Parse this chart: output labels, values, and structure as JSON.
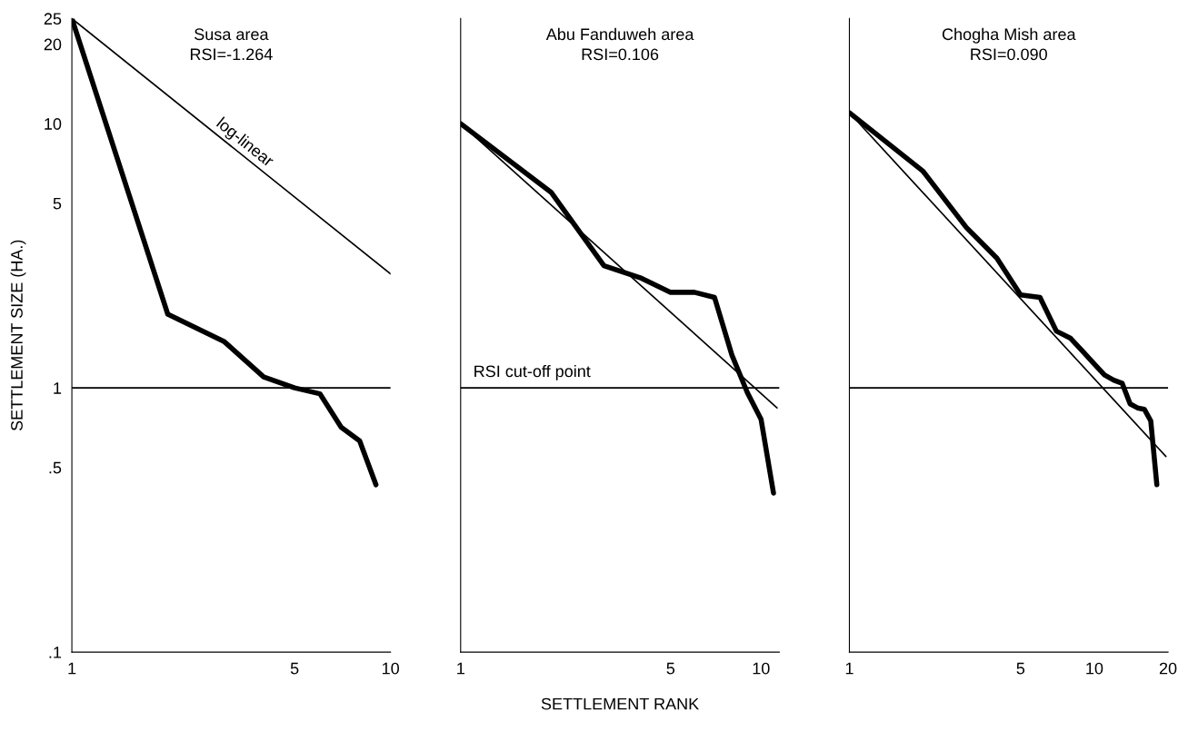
{
  "chart_data": [
    {
      "type": "line",
      "title": "Susa area",
      "subtitle": "RSI=-1.264",
      "ylabel": "SETTLEMENT SIZE (HA.)",
      "log": "xy",
      "grid": false,
      "legend": false,
      "marker": "none",
      "line_style": "solid",
      "xlim": [
        1,
        10
      ],
      "xticks": [
        1,
        5,
        10
      ],
      "ylim": [
        0.1,
        25
      ],
      "yticks": [
        {
          "value": 0.1,
          "label": ".1"
        },
        {
          "value": 0.5,
          "label": ".5"
        },
        1,
        5,
        10,
        20,
        25
      ],
      "series": [
        {
          "color": "#000000",
          "x": [
            1,
            2,
            3,
            4,
            5,
            6,
            7,
            8,
            9
          ],
          "values": [
            25,
            1.9,
            1.5,
            1.1,
            1.0,
            0.95,
            0.71,
            0.63,
            0.43
          ]
        },
        {
          "name": "log-linear",
          "color": "#000000",
          "x": [
            1,
            10
          ],
          "values": [
            25,
            2.7
          ]
        }
      ],
      "ref_lines": [
        {
          "axis": "y",
          "value": 1,
          "label": null,
          "color": "#000000"
        }
      ]
    },
    {
      "type": "line",
      "title": "Abu Fanduweh area",
      "subtitle": "RSI=0.106",
      "xlabel": "SETTLEMENT RANK",
      "log": "xy",
      "grid": false,
      "legend": false,
      "marker": "none",
      "line_style": "solid",
      "tick_labels": "x",
      "xlim": [
        1,
        11.5
      ],
      "xticks": [
        1,
        5,
        10
      ],
      "ylim": [
        0.1,
        25
      ],
      "series": [
        {
          "color": "#000000",
          "x": [
            1,
            2,
            3,
            4,
            5,
            6,
            7,
            8,
            9,
            10,
            11
          ],
          "values": [
            10,
            5.5,
            2.9,
            2.6,
            2.3,
            2.3,
            2.2,
            1.33,
            0.96,
            0.76,
            0.4
          ]
        },
        {
          "color": "#000000",
          "x": [
            1,
            11.3
          ],
          "values": [
            10,
            0.84
          ]
        }
      ],
      "ref_lines": [
        {
          "axis": "y",
          "value": 1,
          "label": "RSI cut-off point",
          "color": "#000000"
        }
      ]
    },
    {
      "type": "line",
      "title": "Chogha Mish area",
      "subtitle": "RSI=0.090",
      "log": "xy",
      "grid": false,
      "legend": false,
      "marker": "none",
      "line_style": "solid",
      "tick_labels": "x",
      "xlim": [
        1,
        20
      ],
      "xticks": [
        1,
        5,
        10,
        20
      ],
      "ylim": [
        0.1,
        25
      ],
      "series": [
        {
          "color": "#000000",
          "x": [
            1,
            2,
            3,
            4,
            5,
            6,
            7,
            8,
            9,
            10,
            11,
            12,
            13,
            14,
            15,
            16,
            17,
            18
          ],
          "values": [
            11,
            6.6,
            4.05,
            3.1,
            2.25,
            2.2,
            1.64,
            1.54,
            1.37,
            1.23,
            1.12,
            1.07,
            1.04,
            0.87,
            0.84,
            0.83,
            0.75,
            0.43
          ]
        },
        {
          "color": "#000000",
          "x": [
            1,
            19.6
          ],
          "values": [
            11,
            0.55
          ]
        }
      ],
      "ref_lines": [
        {
          "axis": "y",
          "value": 1,
          "label": null,
          "color": "#000000"
        }
      ]
    }
  ]
}
